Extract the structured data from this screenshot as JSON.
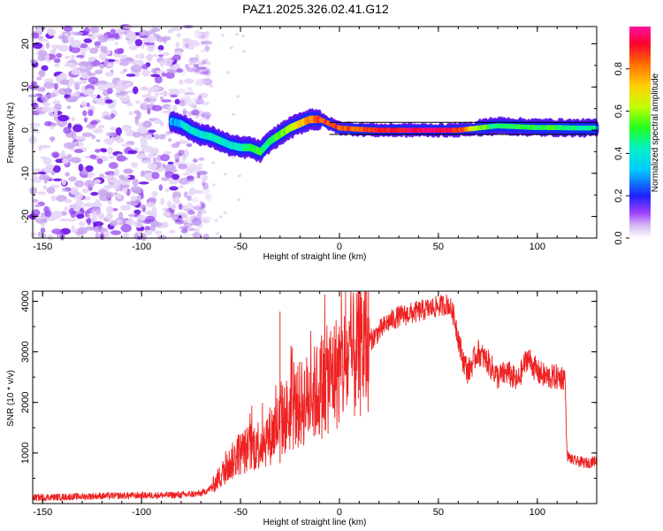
{
  "title": "PAZ1.2025.326.02.41.G12",
  "colors": {
    "snr_line": "#ee2222",
    "frame": "#000000"
  },
  "chart_data": [
    {
      "type": "heatmap",
      "name": "spectrogram",
      "xlabel": "Height of straight line (km)",
      "ylabel": "Frequency (Hz)",
      "xlim": [
        -155,
        130
      ],
      "ylim": [
        -25,
        24
      ],
      "xticks": [
        -150,
        -100,
        -50,
        0,
        50,
        100
      ],
      "xtick_labels": [
        "-150",
        "-100",
        "-50",
        "0",
        "50",
        "100"
      ],
      "yticks": [
        -20,
        -10,
        0,
        10,
        20
      ],
      "ytick_labels": [
        "-20",
        "-10",
        "0",
        "10",
        "20"
      ],
      "noise_region_x": [
        -155,
        -70
      ],
      "ridge": {
        "x": [
          -85,
          -80,
          -75,
          -70,
          -65,
          -60,
          -55,
          -50,
          -45,
          -40,
          -35,
          -30,
          -25,
          -20,
          -15,
          -10,
          -5,
          0,
          10,
          20,
          30,
          40,
          50,
          60,
          70,
          80,
          90,
          100,
          110,
          120,
          130
        ],
        "freq": [
          2,
          1.5,
          0,
          -1,
          -1.5,
          -2.5,
          -3.5,
          -4,
          -4,
          -5,
          -2.5,
          -1,
          0.5,
          1.5,
          2.5,
          2.5,
          1.5,
          0.5,
          0.2,
          0,
          0,
          0,
          0,
          0,
          0.5,
          1,
          0.8,
          0.6,
          0.6,
          0.5,
          0.5
        ],
        "amplitude": [
          0.3,
          0.35,
          0.4,
          0.4,
          0.4,
          0.45,
          0.4,
          0.4,
          0.5,
          0.5,
          0.45,
          0.55,
          0.6,
          0.7,
          0.8,
          0.85,
          0.85,
          0.85,
          0.85,
          0.9,
          0.9,
          0.95,
          0.95,
          0.9,
          0.6,
          0.45,
          0.5,
          0.5,
          0.5,
          0.45,
          0.45
        ]
      },
      "colorbar": {
        "label": "Normalized spectral amplitude",
        "range": [
          0,
          1
        ],
        "ticks": [
          0.0,
          0.2,
          0.4,
          0.6,
          0.8
        ],
        "tick_labels": [
          "0.0",
          "0.2",
          "0.4",
          "0.6",
          "0.8"
        ]
      }
    },
    {
      "type": "line",
      "name": "snr",
      "xlabel": "Height of straight line (km)",
      "ylabel": "SNR (10 * v/v)",
      "xlim": [
        -155,
        130
      ],
      "ylim": [
        0,
        4200
      ],
      "xticks": [
        -150,
        -100,
        -50,
        0,
        50,
        100
      ],
      "xtick_labels": [
        "-150",
        "-100",
        "-50",
        "0",
        "50",
        "100"
      ],
      "yticks": [
        1000,
        2000,
        3000,
        4000
      ],
      "ytick_labels": [
        "1000",
        "2000",
        "3000",
        "4000"
      ],
      "x": [
        -155,
        -140,
        -120,
        -100,
        -80,
        -70,
        -65,
        -60,
        -55,
        -50,
        -45,
        -40,
        -35,
        -30,
        -25,
        -20,
        -15,
        -10,
        -5,
        0,
        5,
        10,
        15,
        20,
        25,
        30,
        35,
        40,
        45,
        50,
        55,
        58,
        62,
        65,
        70,
        75,
        80,
        85,
        90,
        95,
        100,
        105,
        110,
        114,
        115,
        118,
        125,
        130
      ],
      "values": [
        120,
        130,
        150,
        160,
        170,
        200,
        300,
        550,
        800,
        1000,
        1100,
        1200,
        1350,
        1600,
        1800,
        1950,
        2100,
        2250,
        2500,
        2650,
        2800,
        3000,
        3200,
        3400,
        3600,
        3700,
        3750,
        3800,
        3850,
        3900,
        3950,
        3700,
        2900,
        2600,
        3000,
        2800,
        2500,
        2600,
        2400,
        2900,
        2600,
        2500,
        2500,
        2500,
        950,
        850,
        800,
        850
      ]
    }
  ]
}
